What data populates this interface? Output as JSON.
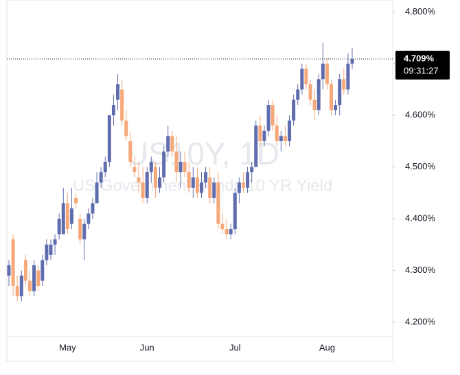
{
  "chart_data": {
    "type": "candlestick",
    "symbol": "US10Y, 1D",
    "description": "US Government Bonds 10 YR Yield",
    "categories": [
      null,
      null,
      null,
      null,
      null,
      null,
      null,
      null,
      null,
      null,
      null,
      null,
      null,
      null,
      "May",
      null,
      null,
      null,
      null,
      null,
      null,
      null,
      null,
      null,
      null,
      null,
      null,
      null,
      null,
      null,
      null,
      null,
      null,
      "Jun",
      null,
      null,
      null,
      null,
      null,
      null,
      null,
      null,
      null,
      null,
      null,
      null,
      null,
      null,
      null,
      null,
      null,
      null,
      null,
      null,
      "Jul",
      null,
      null,
      null,
      null,
      null,
      null,
      null,
      null,
      null,
      null,
      null,
      null,
      null,
      null,
      null,
      null,
      null,
      null,
      null,
      null,
      null,
      "Aug",
      null,
      null,
      null,
      null,
      null,
      null
    ],
    "open": [
      4.29,
      4.36,
      4.27,
      4.25,
      4.32,
      4.28,
      4.26,
      4.3,
      4.28,
      4.32,
      4.33,
      4.35,
      4.37,
      4.37,
      4.43,
      4.39,
      4.44,
      4.4,
      4.36,
      4.39,
      4.41,
      4.43,
      4.47,
      4.49,
      4.51,
      4.6,
      4.63,
      4.65,
      4.59,
      4.55,
      4.5,
      4.48,
      4.47,
      4.44,
      4.49,
      4.5,
      4.46,
      4.48,
      4.53,
      4.56,
      4.53,
      4.49,
      4.51,
      4.49,
      4.46,
      4.48,
      4.45,
      4.47,
      4.48,
      4.44,
      4.47,
      4.39,
      4.38,
      4.37,
      4.38,
      4.45,
      4.47,
      4.46,
      4.49,
      4.5,
      4.58,
      4.55,
      4.57,
      4.62,
      4.58,
      4.55,
      4.56,
      4.55,
      4.59,
      4.63,
      4.65,
      4.69,
      4.66,
      4.63,
      4.61,
      4.67,
      4.7,
      4.66,
      4.61,
      4.62,
      4.67,
      4.65,
      4.7
    ],
    "high": [
      4.32,
      4.37,
      4.29,
      4.3,
      4.33,
      4.3,
      4.32,
      4.31,
      4.33,
      4.36,
      4.36,
      4.37,
      4.41,
      4.46,
      4.45,
      4.46,
      4.45,
      4.41,
      4.4,
      4.42,
      4.44,
      4.49,
      4.5,
      4.52,
      4.6,
      4.64,
      4.68,
      4.67,
      4.61,
      4.57,
      4.52,
      4.51,
      4.5,
      4.5,
      4.52,
      4.51,
      4.5,
      4.54,
      4.58,
      4.57,
      4.56,
      4.53,
      4.53,
      4.51,
      4.5,
      4.5,
      4.49,
      4.5,
      4.5,
      4.48,
      4.49,
      4.41,
      4.4,
      4.39,
      4.46,
      4.48,
      4.49,
      4.5,
      4.51,
      4.59,
      4.6,
      4.58,
      4.63,
      4.63,
      4.6,
      4.57,
      4.58,
      4.6,
      4.64,
      4.66,
      4.7,
      4.7,
      4.67,
      4.65,
      4.68,
      4.74,
      4.71,
      4.67,
      4.63,
      4.68,
      4.69,
      4.72,
      4.73
    ],
    "low": [
      4.27,
      4.25,
      4.24,
      4.24,
      4.27,
      4.25,
      4.25,
      4.26,
      4.27,
      4.31,
      4.32,
      4.33,
      4.36,
      4.37,
      4.37,
      4.38,
      4.42,
      4.35,
      4.32,
      4.38,
      4.4,
      4.43,
      4.46,
      4.48,
      4.5,
      4.58,
      4.61,
      4.58,
      4.55,
      4.5,
      4.48,
      4.45,
      4.43,
      4.43,
      4.47,
      4.44,
      4.45,
      4.47,
      4.52,
      4.52,
      4.47,
      4.46,
      4.48,
      4.45,
      4.44,
      4.44,
      4.44,
      4.46,
      4.43,
      4.43,
      4.38,
      4.37,
      4.36,
      4.36,
      4.37,
      4.43,
      4.45,
      4.45,
      4.47,
      4.5,
      4.54,
      4.54,
      4.56,
      4.57,
      4.54,
      4.53,
      4.54,
      4.54,
      4.58,
      4.62,
      4.64,
      4.65,
      4.62,
      4.59,
      4.6,
      4.65,
      4.65,
      4.6,
      4.6,
      4.6,
      4.64,
      4.64,
      4.69
    ],
    "close": [
      4.31,
      4.27,
      4.25,
      4.29,
      4.28,
      4.26,
      4.31,
      4.27,
      4.32,
      4.35,
      4.35,
      4.36,
      4.4,
      4.43,
      4.38,
      4.42,
      4.43,
      4.36,
      4.39,
      4.41,
      4.43,
      4.47,
      4.49,
      4.51,
      4.6,
      4.62,
      4.66,
      4.59,
      4.56,
      4.51,
      4.49,
      4.47,
      4.44,
      4.49,
      4.51,
      4.46,
      4.48,
      4.53,
      4.56,
      4.53,
      4.49,
      4.51,
      4.49,
      4.46,
      4.48,
      4.45,
      4.47,
      4.49,
      4.44,
      4.47,
      4.39,
      4.38,
      4.37,
      4.38,
      4.45,
      4.47,
      4.46,
      4.49,
      4.5,
      4.58,
      4.55,
      4.57,
      4.62,
      4.58,
      4.55,
      4.56,
      4.55,
      4.59,
      4.63,
      4.65,
      4.69,
      4.66,
      4.63,
      4.61,
      4.67,
      4.7,
      4.66,
      4.61,
      4.62,
      4.67,
      4.65,
      4.7,
      4.709
    ],
    "up_color": "#5f6cae",
    "down_color": "#f6a878",
    "ylim": [
      4.172,
      4.823
    ],
    "yticks": [
      {
        "value": 4.8,
        "label": "4.800%"
      },
      {
        "value": 4.7,
        "label": "4.700%"
      },
      {
        "value": 4.6,
        "label": "4.600%"
      },
      {
        "value": 4.5,
        "label": "4.500%"
      },
      {
        "value": 4.4,
        "label": "4.400%"
      },
      {
        "value": 4.3,
        "label": "4.300%"
      },
      {
        "value": 4.2,
        "label": "4.200%"
      }
    ],
    "grid": false,
    "current_price": {
      "value": 4.709,
      "label": "4.709%"
    },
    "current_time": "09:31:27"
  }
}
